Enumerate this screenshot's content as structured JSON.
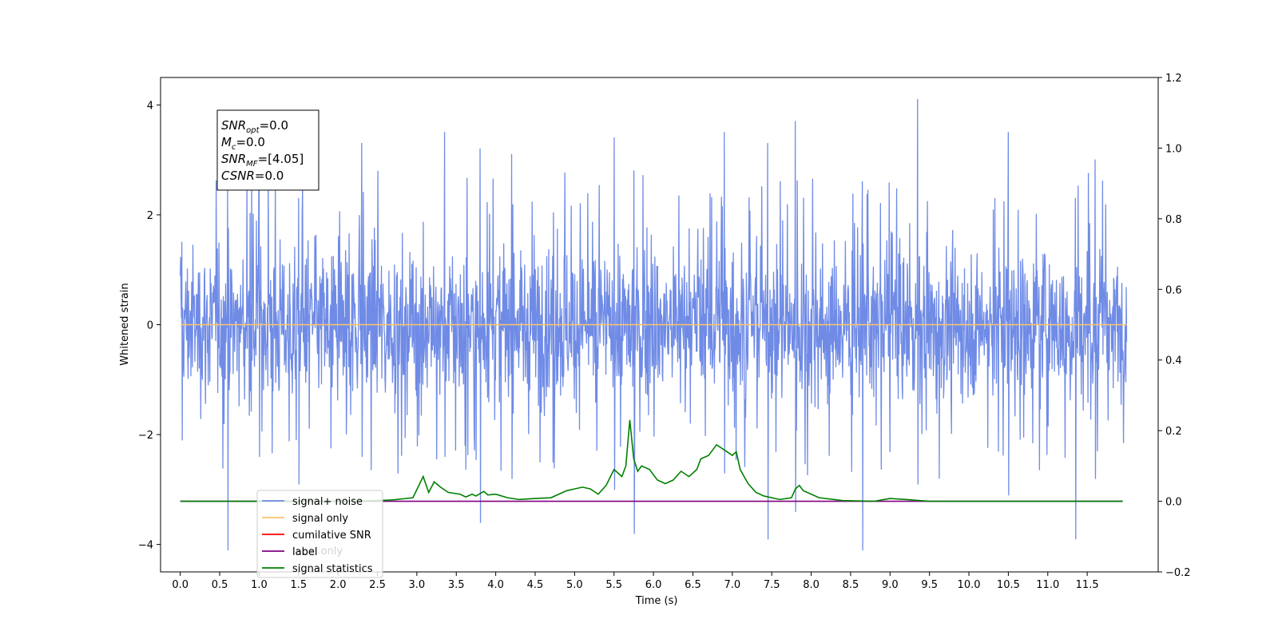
{
  "chart_data": {
    "type": "line",
    "xlabel": "Time (s)",
    "ylabel": "Whitened strain",
    "xlim": [
      -0.25,
      12.4
    ],
    "ylim": [
      -4.5,
      4.5
    ],
    "y2lim": [
      -0.2,
      1.2
    ],
    "x_ticks": [
      "0.0",
      "0.5",
      "1.0",
      "1.5",
      "2.0",
      "2.5",
      "3.0",
      "3.5",
      "4.0",
      "4.5",
      "5.0",
      "5.5",
      "6.0",
      "6.5",
      "7.0",
      "7.5",
      "8.0",
      "8.5",
      "9.0",
      "9.5",
      "10.0",
      "10.5",
      "11.0",
      "11.5"
    ],
    "y_ticks": [
      "4",
      "2",
      "0",
      "−2",
      "−4"
    ],
    "y2_ticks": [
      "1.2",
      "1.0",
      "0.8",
      "0.6",
      "0.4",
      "0.2",
      "0.0",
      "−0.2"
    ],
    "info_box": [
      {
        "sym": "SNR",
        "sub": "opt",
        "val": "=0.0"
      },
      {
        "sym": "M",
        "sub": "c",
        "val": "=0.0"
      },
      {
        "sym": "SNR",
        "sub": "MF",
        "val": "=[4.05]"
      },
      {
        "sym": "CSNR",
        "sub": "",
        "val": "=0.0"
      }
    ],
    "legend_position": "lower-left",
    "legend": [
      {
        "label": "signal+ noise",
        "color": "#6f8be6"
      },
      {
        "label": "signal only",
        "color": "#ffc36b"
      },
      {
        "label": "cumilative SNR",
        "color": "#ff0000"
      },
      {
        "label": "label",
        "color": "#800080"
      },
      {
        "label": "signal statistics",
        "color": "#008000"
      }
    ],
    "hidden_legend_text": "label only",
    "series": [
      {
        "name": "signal+ noise",
        "axis": "left",
        "x_range": [
          0.0,
          12.0
        ],
        "color": "#6f8be6",
        "envelope_peaks": [
          {
            "x": 0.02,
            "y": 1.5,
            "ymin": -2.1
          },
          {
            "x": 0.6,
            "y": 2.5,
            "ymin": -4.1
          },
          {
            "x": 1.0,
            "y": 2.6,
            "ymin": -2.4
          },
          {
            "x": 1.5,
            "y": 2.3,
            "ymin": -2.9
          },
          {
            "x": 2.3,
            "y": 3.3,
            "ymin": -2.4
          },
          {
            "x": 3.35,
            "y": 3.5,
            "ymin": -2.4
          },
          {
            "x": 3.8,
            "y": 3.2,
            "ymin": -3.6
          },
          {
            "x": 4.2,
            "y": 3.1,
            "ymin": -2.8
          },
          {
            "x": 5.5,
            "y": 3.4,
            "ymin": -3.0
          },
          {
            "x": 5.75,
            "y": 2.8,
            "ymin": -3.8
          },
          {
            "x": 6.9,
            "y": 3.5,
            "ymin": -2.7
          },
          {
            "x": 7.45,
            "y": 3.3,
            "ymin": -3.9
          },
          {
            "x": 7.8,
            "y": 3.7,
            "ymin": -3.4
          },
          {
            "x": 8.65,
            "y": 2.6,
            "ymin": -4.1
          },
          {
            "x": 9.35,
            "y": 4.1,
            "ymin": -2.9
          },
          {
            "x": 10.5,
            "y": 3.5,
            "ymin": -3.1
          },
          {
            "x": 11.35,
            "y": 2.3,
            "ymin": -3.9
          },
          {
            "x": 11.6,
            "y": 3.0,
            "ymin": -2.8
          }
        ]
      },
      {
        "name": "signal only",
        "axis": "left",
        "color": "#ffc36b",
        "x": [
          0.0,
          12.0
        ],
        "values": [
          0.0,
          0.0
        ]
      },
      {
        "name": "label",
        "axis": "right",
        "color": "#800080",
        "x": [
          0.0,
          11.95
        ],
        "values": [
          0.0,
          0.0
        ]
      },
      {
        "name": "signal statistics",
        "axis": "right",
        "color": "#008000",
        "x": [
          0.0,
          2.2,
          2.5,
          2.7,
          2.95,
          3.08,
          3.15,
          3.22,
          3.3,
          3.4,
          3.55,
          3.62,
          3.7,
          3.75,
          3.85,
          3.9,
          4.0,
          4.15,
          4.3,
          4.5,
          4.7,
          4.9,
          5.0,
          5.1,
          5.2,
          5.3,
          5.4,
          5.5,
          5.6,
          5.65,
          5.7,
          5.75,
          5.8,
          5.85,
          5.95,
          6.05,
          6.15,
          6.25,
          6.35,
          6.45,
          6.55,
          6.6,
          6.7,
          6.8,
          6.9,
          7.0,
          7.05,
          7.1,
          7.2,
          7.3,
          7.4,
          7.6,
          7.75,
          7.8,
          7.85,
          7.9,
          8.1,
          8.4,
          8.8,
          9.0,
          9.2,
          9.5,
          10.0,
          11.95
        ],
        "values": [
          0.0,
          0.0,
          0.002,
          0.004,
          0.01,
          0.07,
          0.025,
          0.055,
          0.04,
          0.025,
          0.02,
          0.012,
          0.02,
          0.015,
          0.028,
          0.018,
          0.02,
          0.01,
          0.005,
          0.008,
          0.01,
          0.03,
          0.035,
          0.04,
          0.035,
          0.02,
          0.045,
          0.09,
          0.07,
          0.1,
          0.23,
          0.12,
          0.085,
          0.1,
          0.09,
          0.06,
          0.05,
          0.06,
          0.085,
          0.07,
          0.09,
          0.12,
          0.13,
          0.16,
          0.145,
          0.13,
          0.14,
          0.09,
          0.05,
          0.025,
          0.015,
          0.005,
          0.01,
          0.035,
          0.045,
          0.03,
          0.01,
          0.002,
          0.0,
          0.008,
          0.005,
          0.0,
          0.0,
          0.0
        ]
      }
    ]
  }
}
